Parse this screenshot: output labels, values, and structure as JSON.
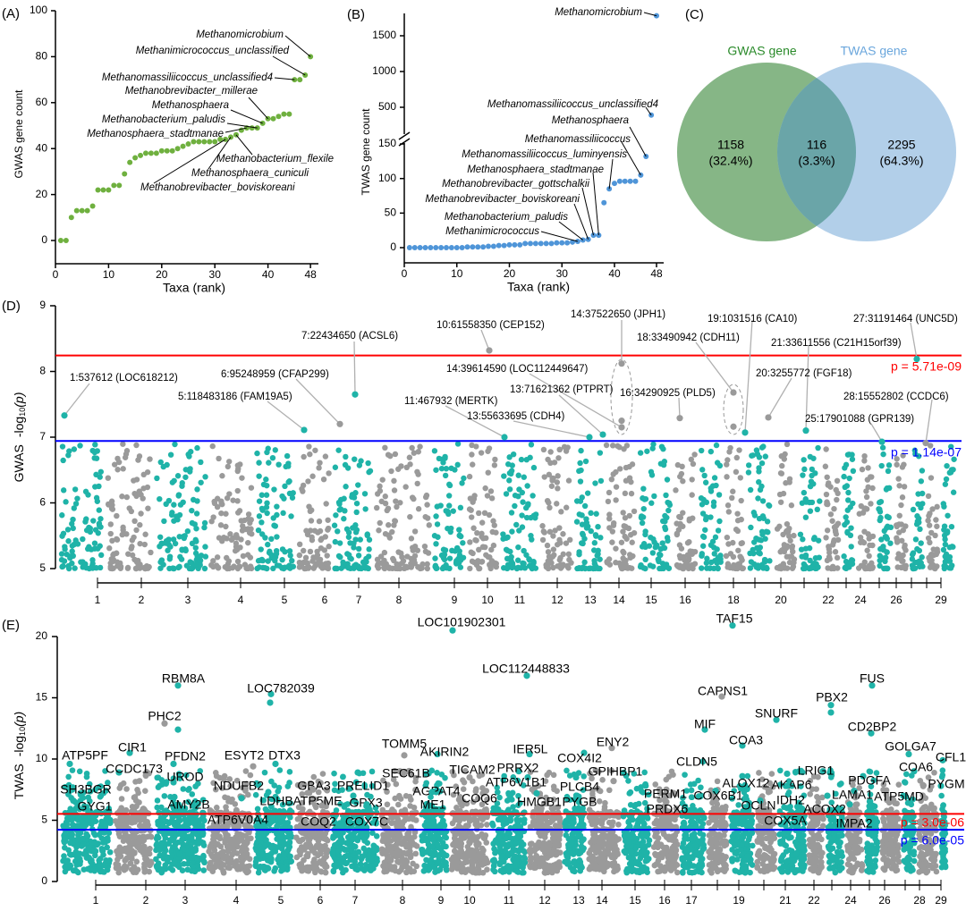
{
  "panels": {
    "a": "(A)",
    "b": "(B)",
    "c": "(C)",
    "d": "(D)",
    "e": "(E)"
  },
  "colors": {
    "gwas_green": "#6fb03f",
    "twas_blue": "#4f95d8",
    "venn_green": "#7fb27f",
    "venn_blue": "#aecce8",
    "teal": "#1fb3a8",
    "gray": "#9a9a9a",
    "threshold_red": "#ff0000",
    "threshold_blue": "#0000ff"
  },
  "chart_data": [
    {
      "type": "scatter",
      "xlabel": "Taxa (rank)",
      "ylabel": "GWAS gene count",
      "xticks": [
        0,
        10,
        20,
        30,
        40,
        48
      ],
      "yticks": [
        0,
        20,
        40,
        60,
        80,
        100
      ],
      "xlim": [
        0,
        50
      ],
      "ylim": [
        -10,
        100
      ],
      "values": [
        0,
        0,
        10,
        13,
        13,
        13,
        15,
        22,
        22,
        22,
        24,
        24,
        29,
        34,
        36,
        37,
        38,
        38,
        38,
        39,
        39,
        39,
        40,
        41,
        42,
        43,
        43,
        43,
        43,
        43,
        44,
        44,
        45,
        46,
        48,
        49,
        49,
        49,
        51,
        53,
        53,
        54,
        55,
        55,
        70,
        70,
        72,
        80
      ],
      "labels": [
        {
          "taxon": "Methanomicrobium",
          "rank": 48
        },
        {
          "taxon": "Methanimicrococcus_unclassified",
          "rank": 47
        },
        {
          "taxon": "Methanomassiliicoccus_unclassified4",
          "rank": 45
        },
        {
          "taxon": "Methanobrevibacter_millerae",
          "rank": 40
        },
        {
          "taxon": "Methanosphaera",
          "rank": 39
        },
        {
          "taxon": "Methanobacterium_paludis",
          "rank": 38
        },
        {
          "taxon": "Methanosphaera_stadtmanae",
          "rank": 36
        },
        {
          "taxon": "Methanobacterium_flexile",
          "rank": 34
        },
        {
          "taxon": "Methanosphaera_cuniculi",
          "rank": 33
        },
        {
          "taxon": "Methanobrevibacter_boviskoreani",
          "rank": 32
        }
      ]
    },
    {
      "type": "scatter",
      "xlabel": "Taxa (rank)",
      "ylabel": "TWAS gene count",
      "xticks": [
        0,
        10,
        20,
        30,
        40,
        48
      ],
      "yticks": [
        0,
        50,
        100,
        150,
        500,
        1000,
        1500
      ],
      "axis_break": [
        150,
        400
      ],
      "xlim": [
        0,
        50
      ],
      "ylim": [
        -20,
        1800
      ],
      "values": [
        0,
        0,
        0,
        0,
        0,
        0,
        0,
        0,
        0,
        0,
        0,
        1,
        1,
        1,
        1,
        2,
        2,
        3,
        3,
        4,
        4,
        4,
        6,
        6,
        6,
        6,
        6,
        6,
        7,
        7,
        7,
        8,
        9,
        11,
        12,
        18,
        18,
        65,
        85,
        93,
        96,
        96,
        96,
        96,
        105,
        132,
        390,
        1780
      ],
      "labels": [
        {
          "taxon": "Methanomicrobium",
          "rank": 48
        },
        {
          "taxon": "Methanomassiliicoccus_unclassified4",
          "rank": 47
        },
        {
          "taxon": "Methanosphaera",
          "rank": 46
        },
        {
          "taxon": "Methanomassiliicoccus",
          "rank": 45
        },
        {
          "taxon": "Methanomassiliicoccus_luminyensis",
          "rank": 39
        },
        {
          "taxon": "Methanosphaera_stadtmanae",
          "rank": 37
        },
        {
          "taxon": "Methanobrevibacter_gottschalkii",
          "rank": 36
        },
        {
          "taxon": "Methanobrevibacter_boviskoreani",
          "rank": 35
        },
        {
          "taxon": "Methanobacterium_paludis",
          "rank": 34
        },
        {
          "taxon": "Methanimicrococcus",
          "rank": 33
        }
      ]
    },
    {
      "type": "venn",
      "sets": [
        {
          "name": "GWAS gene",
          "count": "1158",
          "percent": "(32.4%)"
        },
        {
          "name": "TWAS gene",
          "count": "2295",
          "percent": "(64.3%)"
        }
      ],
      "intersection": {
        "count": "116",
        "percent": "(3.3%)"
      }
    },
    {
      "type": "scatter",
      "ylabel": {
        "prefix": "GWAS",
        "text": "-log",
        "sub": "10",
        "suffix": "(p)"
      },
      "yticks": [
        5,
        6,
        7,
        8,
        9
      ],
      "ylim": [
        5,
        9
      ],
      "chromosome_labels": [
        "1",
        "2",
        "3",
        "4",
        "5",
        "6",
        "7",
        "8",
        "9",
        "10",
        "11",
        "12",
        "13",
        "14",
        "15",
        "16",
        "18",
        "20",
        "22",
        "24",
        "26",
        "29"
      ],
      "thresholds": [
        {
          "label": "p = 5.71e-09",
          "value": 8.243,
          "color": "#ff0000"
        },
        {
          "label": "p = 1.14e-07",
          "value": 6.943,
          "color": "#0000ff"
        }
      ],
      "annotated": [
        {
          "label": "1:537612 (LOC618212)",
          "chr": 1,
          "value": 7.33
        },
        {
          "label": "5:118483186 (FAM19A5)",
          "chr": 5,
          "value": 7.11
        },
        {
          "label": "6:95248959 (CFAP299)",
          "chr": 6,
          "value": 7.2
        },
        {
          "label": "7:22434650 (ACSL6)",
          "chr": 7,
          "value": 7.65
        },
        {
          "label": "10:61558350 (CEP152)",
          "chr": 10,
          "value": 8.32
        },
        {
          "label": "14:37522650 (JPH1)",
          "chr": 14,
          "value": 8.12
        },
        {
          "label": "14:39614590 (LOC112449647)",
          "chr": 14,
          "value": 7.15
        },
        {
          "label": "11:467932 (MERTK)",
          "chr": 11,
          "value": 7.0
        },
        {
          "label": "13:71621362 (PTPRT)",
          "chr": 13,
          "value": 7.04
        },
        {
          "label": "13:55633695 (CDH4)",
          "chr": 13,
          "value": 7.0
        },
        {
          "label": "16:34290925 (PLD5)",
          "chr": 16,
          "value": 7.29
        },
        {
          "label": "18:33490942 (CDH11)",
          "chr": 18,
          "value": 7.68
        },
        {
          "label": "19:1031516 (CA10)",
          "chr": 19,
          "value": 7.07
        },
        {
          "label": "21:33611556 (C21H15orf39)",
          "chr": 21,
          "value": 7.1
        },
        {
          "label": "20:3255772 (FGF18)",
          "chr": 20,
          "value": 7.3
        },
        {
          "label": "25:17901088 (GPR139)",
          "chr": 25,
          "value": 6.93
        },
        {
          "label": "28:15552802 (CCDC6)",
          "chr": 28,
          "value": 6.91
        },
        {
          "label": "27:31191464 (UNC5D)",
          "chr": 27,
          "value": 8.19
        }
      ]
    },
    {
      "type": "scatter",
      "ylabel": {
        "prefix": "TWAS",
        "text": "-log",
        "sub": "10",
        "suffix": "(p)"
      },
      "yticks": [
        0,
        5,
        10,
        15,
        20
      ],
      "ylim": [
        0,
        21
      ],
      "chromosome_labels": [
        "1",
        "2",
        "3",
        "4",
        "5",
        "6",
        "7",
        "8",
        "9",
        "10",
        "11",
        "12",
        "13",
        "14",
        "15",
        "16",
        "17",
        "19",
        "21",
        "22",
        "24",
        "26",
        "28",
        "29"
      ],
      "thresholds": [
        {
          "label": "p = 3.0e-06",
          "value": 5.52,
          "color": "#ff0000"
        },
        {
          "label": "p = 6.0e-05",
          "value": 4.22,
          "color": "#0000ff"
        }
      ],
      "genes": [
        {
          "gene": "ATP5PF",
          "value": 9.6
        },
        {
          "gene": "CIR1",
          "value": 10.5
        },
        {
          "gene": "CCDC173",
          "value": 8.9
        },
        {
          "gene": "RBM8A",
          "value": 16.0
        },
        {
          "gene": "PHC2",
          "value": 12.4
        },
        {
          "gene": "PFDN2",
          "value": 9.6
        },
        {
          "gene": "UROD",
          "value": 8.1
        },
        {
          "gene": "SH3BGR",
          "value": 7.4
        },
        {
          "gene": "GYG1",
          "value": 6.6
        },
        {
          "gene": "AMY2B",
          "value": 6.9
        },
        {
          "gene": "LOC782039",
          "value": 15.3
        },
        {
          "gene": "ESYT2",
          "value": 9.4
        },
        {
          "gene": "DTX3",
          "value": 9.6
        },
        {
          "gene": "NDUFB2",
          "value": 7.9
        },
        {
          "gene": "LDHB",
          "value": 7.3
        },
        {
          "gene": "ATP6V0A4",
          "value": 6.8
        },
        {
          "gene": "GBA3",
          "value": 7.9
        },
        {
          "gene": "ATP5ME",
          "value": 7.5
        },
        {
          "gene": "COQ2",
          "value": 6.2
        },
        {
          "gene": "PRELID1",
          "value": 8.9
        },
        {
          "gene": "GPX3",
          "value": 7.0
        },
        {
          "gene": "COX7C",
          "value": 6.3
        },
        {
          "gene": "TOMM5",
          "value": 10.3
        },
        {
          "gene": "AKIRIN2",
          "value": 10.4
        },
        {
          "gene": "SEC61B",
          "value": 9.0
        },
        {
          "gene": "AGPAT4",
          "value": 8.0
        },
        {
          "gene": "ME1",
          "value": 7.3
        },
        {
          "gene": "TICAM2",
          "value": 8.5
        },
        {
          "gene": "COQ6",
          "value": 7.2
        },
        {
          "gene": "LOC101902301",
          "value": 20.5
        },
        {
          "gene": "TAF15",
          "value": 20.9
        },
        {
          "gene": "LOC112448833",
          "value": 16.8
        },
        {
          "gene": "CAPNS1",
          "value": 15.1
        },
        {
          "gene": "FUS",
          "value": 16.0
        },
        {
          "gene": "PBX2",
          "value": 14.4
        },
        {
          "gene": "SNURF",
          "value": 13.2
        },
        {
          "gene": "MIF",
          "value": 12.4
        },
        {
          "gene": "CD2BP2",
          "value": 12.1
        },
        {
          "gene": "COA3",
          "value": 11.1
        },
        {
          "gene": "IER5L",
          "value": 10.4
        },
        {
          "gene": "ENY2",
          "value": 10.9
        },
        {
          "gene": "COX4I2",
          "value": 10.5
        },
        {
          "gene": "GOLGA7",
          "value": 10.4
        },
        {
          "gene": "CLDN5",
          "value": 9.8
        },
        {
          "gene": "COA6",
          "value": 9.0
        },
        {
          "gene": "CFL1",
          "value": 9.9
        },
        {
          "gene": "PRRX2",
          "value": 9.0
        },
        {
          "gene": "GPIHBP1",
          "value": 8.2
        },
        {
          "gene": "ATP6V1B1",
          "value": 8.5
        },
        {
          "gene": "ALOX12",
          "value": 8.6
        },
        {
          "gene": "LRIG1",
          "value": 9.0
        },
        {
          "gene": "AKAP6",
          "value": 8.8
        },
        {
          "gene": "PDGFA",
          "value": 8.6
        },
        {
          "gene": "PYGM",
          "value": 7.8
        },
        {
          "gene": "PLCB4",
          "value": 8.5
        },
        {
          "gene": "HMGB1",
          "value": 7.2
        },
        {
          "gene": "PYGB",
          "value": 7.0
        },
        {
          "gene": "PERM1",
          "value": 7.5
        },
        {
          "gene": "COX6B1",
          "value": 7.4
        },
        {
          "gene": "IDH2",
          "value": 7.8
        },
        {
          "gene": "LAMA1",
          "value": 7.4
        },
        {
          "gene": "ATP5MD",
          "value": 7.0
        },
        {
          "gene": "ACOX2",
          "value": 7.0
        },
        {
          "gene": "PRDX6",
          "value": 6.5
        },
        {
          "gene": "OCLN",
          "value": 6.6
        },
        {
          "gene": "IMPA2",
          "value": 6.3
        },
        {
          "gene": "COX5A",
          "value": 6.0
        }
      ]
    }
  ]
}
